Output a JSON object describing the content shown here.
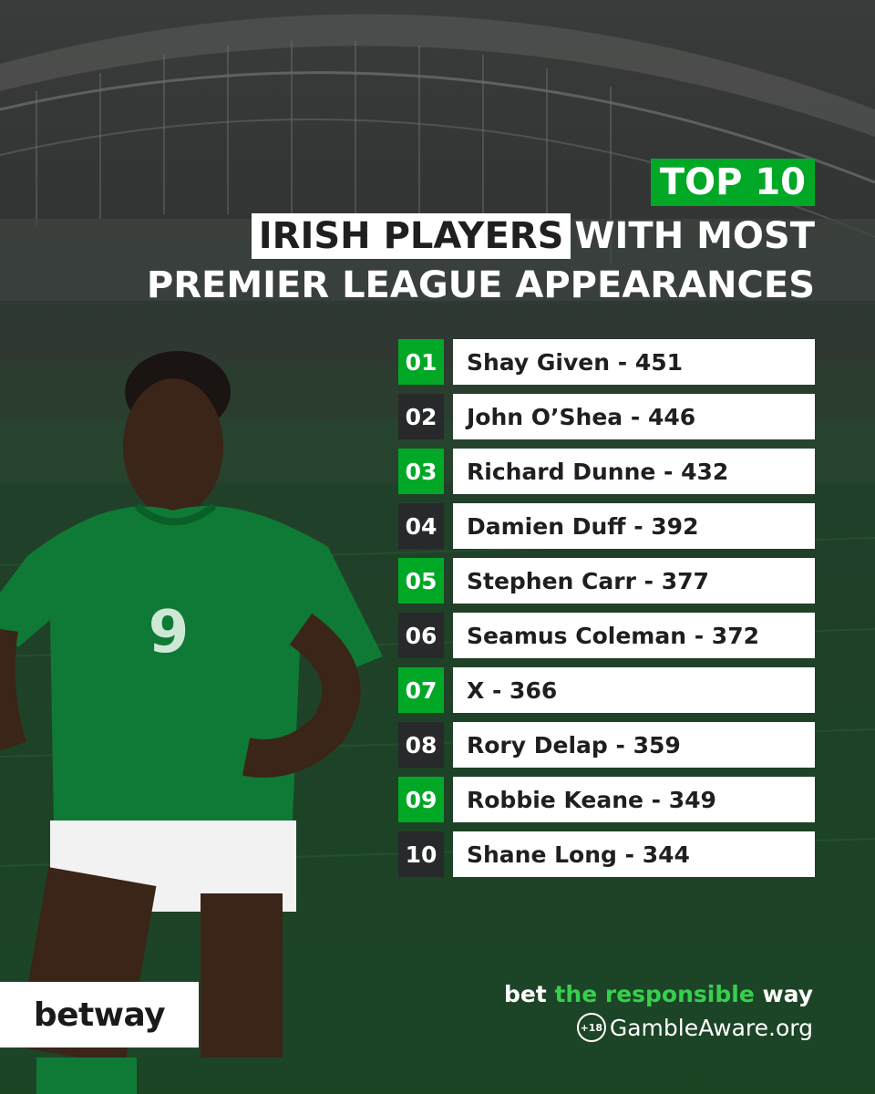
{
  "header": {
    "badge": "TOP 10",
    "title_highlight": "IRISH PLAYERS",
    "title_rest": "WITH MOST",
    "title_line2": "PREMIER LEAGUE APPEARANCES"
  },
  "rankings": [
    {
      "rank": "01",
      "entry": "Shay Given - 451"
    },
    {
      "rank": "02",
      "entry": "John O’Shea - 446"
    },
    {
      "rank": "03",
      "entry": "Richard Dunne - 432"
    },
    {
      "rank": "04",
      "entry": "Damien Duff - 392"
    },
    {
      "rank": "05",
      "entry": "Stephen Carr - 377"
    },
    {
      "rank": "06",
      "entry": "Seamus Coleman - 372"
    },
    {
      "rank": "07",
      "entry": "X - 366"
    },
    {
      "rank": "08",
      "entry": "Rory Delap - 359"
    },
    {
      "rank": "09",
      "entry": "Robbie Keane - 349"
    },
    {
      "rank": "10",
      "entry": "Shane Long - 344"
    }
  ],
  "player": {
    "shirt_number": "9"
  },
  "footer": {
    "logo": "betway",
    "tagline_1": "bet",
    "tagline_2": "the responsible",
    "tagline_3": "way",
    "age_badge": "+18",
    "gamble_aware": "GambleAware.org"
  },
  "colors": {
    "accent_green": "#00a826",
    "dark_badge": "#27292a",
    "kit_green": "#0f7a35"
  },
  "icons": {
    "age_badge": "age-18-plus-icon"
  }
}
